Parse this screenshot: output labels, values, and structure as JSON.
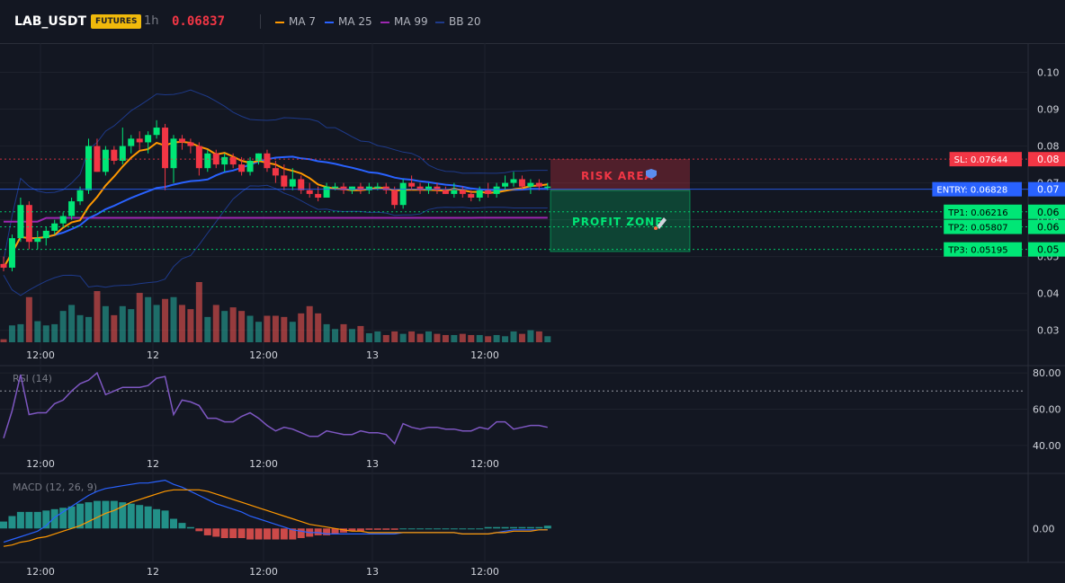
{
  "header": {
    "symbol": "LAB_USDT",
    "badge": "FUTURES",
    "timeframe": "1h",
    "price": "0.06837",
    "legend": [
      {
        "label": "MA 7",
        "color": "#ff9800"
      },
      {
        "label": "MA 25",
        "color": "#2962ff"
      },
      {
        "label": "MA 99",
        "color": "#9c27b0"
      },
      {
        "label": "BB 20",
        "color": "#1e3a8a"
      }
    ]
  },
  "colors": {
    "up": "#00e676",
    "down": "#f23645",
    "vol_up": "#26a69a",
    "vol_down": "#ef5350",
    "grid": "#1e222d",
    "axis_text": "#d1d4dc"
  },
  "chart_data": [
    {
      "type": "candlestick",
      "panel": "price",
      "ylim": [
        0.027,
        0.105
      ],
      "y_ticks": [
        "0.10",
        "0.09",
        "0.08",
        "0.07",
        "0.06",
        "0.05",
        "0.04",
        "0.03"
      ],
      "x_ticks": [
        "12:00",
        "12",
        "12:00",
        "13",
        "12:00"
      ],
      "candles": [
        [
          0.048,
          0.05,
          0.046,
          0.047
        ],
        [
          0.047,
          0.056,
          0.046,
          0.055
        ],
        [
          0.055,
          0.066,
          0.054,
          0.064
        ],
        [
          0.064,
          0.065,
          0.052,
          0.054
        ],
        [
          0.054,
          0.057,
          0.052,
          0.055
        ],
        [
          0.055,
          0.058,
          0.053,
          0.057
        ],
        [
          0.057,
          0.06,
          0.056,
          0.059
        ],
        [
          0.059,
          0.062,
          0.058,
          0.061
        ],
        [
          0.061,
          0.066,
          0.06,
          0.065
        ],
        [
          0.065,
          0.069,
          0.064,
          0.068
        ],
        [
          0.068,
          0.082,
          0.067,
          0.08
        ],
        [
          0.08,
          0.082,
          0.073,
          0.073
        ],
        [
          0.073,
          0.08,
          0.072,
          0.079
        ],
        [
          0.079,
          0.08,
          0.075,
          0.076
        ],
        [
          0.076,
          0.085,
          0.075,
          0.08
        ],
        [
          0.08,
          0.083,
          0.078,
          0.082
        ],
        [
          0.082,
          0.084,
          0.079,
          0.081
        ],
        [
          0.081,
          0.084,
          0.078,
          0.083
        ],
        [
          0.083,
          0.087,
          0.082,
          0.085
        ],
        [
          0.085,
          0.086,
          0.068,
          0.074
        ],
        [
          0.074,
          0.083,
          0.07,
          0.082
        ],
        [
          0.082,
          0.083,
          0.079,
          0.081
        ],
        [
          0.081,
          0.082,
          0.078,
          0.08
        ],
        [
          0.08,
          0.081,
          0.072,
          0.074
        ],
        [
          0.074,
          0.079,
          0.073,
          0.078
        ],
        [
          0.078,
          0.079,
          0.074,
          0.075
        ],
        [
          0.075,
          0.078,
          0.073,
          0.077
        ],
        [
          0.077,
          0.078,
          0.074,
          0.075
        ],
        [
          0.075,
          0.077,
          0.072,
          0.073
        ],
        [
          0.073,
          0.077,
          0.072,
          0.076
        ],
        [
          0.076,
          0.078,
          0.075,
          0.078
        ],
        [
          0.078,
          0.079,
          0.073,
          0.074
        ],
        [
          0.074,
          0.076,
          0.07,
          0.072
        ],
        [
          0.072,
          0.075,
          0.068,
          0.069
        ],
        [
          0.069,
          0.074,
          0.068,
          0.071
        ],
        [
          0.071,
          0.072,
          0.067,
          0.068
        ],
        [
          0.068,
          0.07,
          0.066,
          0.067
        ],
        [
          0.067,
          0.069,
          0.065,
          0.066
        ],
        [
          0.066,
          0.07,
          0.066,
          0.069
        ],
        [
          0.069,
          0.07,
          0.068,
          0.069
        ],
        [
          0.069,
          0.07,
          0.067,
          0.068
        ],
        [
          0.068,
          0.069,
          0.067,
          0.069
        ],
        [
          0.069,
          0.07,
          0.067,
          0.068
        ],
        [
          0.068,
          0.07,
          0.067,
          0.069
        ],
        [
          0.069,
          0.07,
          0.068,
          0.069
        ],
        [
          0.069,
          0.07,
          0.067,
          0.068
        ],
        [
          0.068,
          0.069,
          0.063,
          0.064
        ],
        [
          0.064,
          0.071,
          0.063,
          0.07
        ],
        [
          0.07,
          0.072,
          0.068,
          0.069
        ],
        [
          0.069,
          0.07,
          0.067,
          0.068
        ],
        [
          0.068,
          0.07,
          0.067,
          0.069
        ],
        [
          0.069,
          0.07,
          0.067,
          0.068
        ],
        [
          0.068,
          0.069,
          0.067,
          0.067
        ],
        [
          0.067,
          0.07,
          0.066,
          0.068
        ],
        [
          0.068,
          0.069,
          0.066,
          0.067
        ],
        [
          0.067,
          0.068,
          0.065,
          0.066
        ],
        [
          0.066,
          0.069,
          0.065,
          0.068
        ],
        [
          0.068,
          0.07,
          0.066,
          0.067
        ],
        [
          0.067,
          0.07,
          0.066,
          0.069
        ],
        [
          0.069,
          0.072,
          0.068,
          0.07
        ],
        [
          0.07,
          0.073,
          0.069,
          0.071
        ],
        [
          0.071,
          0.072,
          0.068,
          0.069
        ],
        [
          0.069,
          0.071,
          0.067,
          0.07
        ],
        [
          0.07,
          0.071,
          0.068,
          0.069
        ],
        [
          0.069,
          0.07,
          0.068,
          0.069
        ]
      ],
      "volume": [
        0.05,
        0.28,
        0.3,
        0.75,
        0.35,
        0.28,
        0.3,
        0.52,
        0.62,
        0.45,
        0.42,
        0.85,
        0.6,
        0.45,
        0.6,
        0.55,
        0.82,
        0.75,
        0.62,
        0.72,
        0.75,
        0.62,
        0.55,
        1.0,
        0.42,
        0.62,
        0.52,
        0.58,
        0.52,
        0.44,
        0.34,
        0.44,
        0.44,
        0.42,
        0.34,
        0.48,
        0.6,
        0.48,
        0.3,
        0.22,
        0.3,
        0.22,
        0.27,
        0.15,
        0.18,
        0.12,
        0.18,
        0.14,
        0.18,
        0.14,
        0.18,
        0.14,
        0.12,
        0.12,
        0.14,
        0.12,
        0.12,
        0.1,
        0.12,
        0.1,
        0.18,
        0.14,
        0.2,
        0.18,
        0.1
      ]
    },
    {
      "type": "line",
      "panel": "rsi",
      "title": "RSI (14)",
      "ylim": [
        33,
        84
      ],
      "y_ticks": [
        "80.00",
        "60.00",
        "40.00"
      ],
      "x_ticks": [
        "12:00",
        "12",
        "12:00",
        "13",
        "12:00"
      ],
      "values": [
        44,
        59,
        79,
        57,
        58,
        58,
        63,
        65,
        70,
        74,
        76,
        80,
        68,
        70,
        72,
        72,
        72,
        73,
        77,
        78,
        57,
        65,
        64,
        62,
        55,
        55,
        53,
        53,
        56,
        58,
        55,
        51,
        48,
        50,
        49,
        47,
        45,
        45,
        48,
        47,
        46,
        46,
        48,
        47,
        47,
        46,
        41,
        52,
        50,
        49,
        50,
        50,
        49,
        49,
        48,
        48,
        50,
        49,
        53,
        53,
        49,
        50,
        51,
        51,
        50
      ],
      "overbought": 70
    },
    {
      "type": "line",
      "panel": "macd",
      "title": "MACD (12, 26, 9)",
      "ylim": [
        -0.0022,
        0.0038
      ],
      "y_ticks": [
        "0.00"
      ],
      "x_ticks": [
        "12:00",
        "12",
        "12:00",
        "13",
        "12:00"
      ],
      "series": [
        {
          "values": [
            -0.001,
            -0.0008,
            -0.0006,
            -0.0004,
            -0.0002,
            0.0002,
            0.0008,
            0.0012,
            0.0016,
            0.002,
            0.0024,
            0.0027,
            0.0029,
            0.003,
            0.0031,
            0.0032,
            0.0033,
            0.0033,
            0.0034,
            0.0035,
            0.0032,
            0.003,
            0.0027,
            0.0024,
            0.0021,
            0.0018,
            0.0016,
            0.0014,
            0.0012,
            0.0009,
            0.0007,
            0.0005,
            0.0003,
            0.0001,
            -0.0001,
            -0.0002,
            -0.0003,
            -0.0003,
            -0.0004,
            -0.0004,
            -0.0004,
            -0.0004,
            -0.0004,
            -0.0004,
            -0.0004,
            -0.0004,
            -0.0004,
            -0.0003,
            -0.0003,
            -0.0003,
            -0.0003,
            -0.0003,
            -0.0003,
            -0.0003,
            -0.0004,
            -0.0004,
            -0.0004,
            -0.0004,
            -0.0003,
            -0.0002,
            -0.0001,
            -0.0001,
            -0.0001,
            -0.0001,
            -0.0001
          ],
          "color": "#2962ff"
        },
        {
          "values": [
            -0.0013,
            -0.0012,
            -0.001,
            -0.0009,
            -0.0007,
            -0.0006,
            -0.0004,
            -0.0002,
            0.0,
            0.0002,
            0.0005,
            0.0008,
            0.0011,
            0.0013,
            0.0016,
            0.0019,
            0.0021,
            0.0023,
            0.0025,
            0.0027,
            0.0028,
            0.0028,
            0.0028,
            0.0028,
            0.0027,
            0.0025,
            0.0023,
            0.0021,
            0.0019,
            0.0017,
            0.0015,
            0.0013,
            0.0011,
            0.0009,
            0.0007,
            0.0005,
            0.0003,
            0.0002,
            0.0001,
            0.0,
            -0.0001,
            -0.0002,
            -0.0002,
            -0.0003,
            -0.0003,
            -0.0003,
            -0.0003,
            -0.0003,
            -0.0003,
            -0.0003,
            -0.0003,
            -0.0003,
            -0.0003,
            -0.0003,
            -0.0004,
            -0.0004,
            -0.0004,
            -0.0004,
            -0.0003,
            -0.0003,
            -0.0002,
            -0.0002,
            -0.0002,
            -0.0001,
            -0.0001
          ],
          "color": "#ff9800"
        }
      ],
      "histogram": [
        0.0005,
        0.0009,
        0.0012,
        0.0012,
        0.0012,
        0.0013,
        0.0014,
        0.0015,
        0.0016,
        0.0018,
        0.0019,
        0.002,
        0.002,
        0.002,
        0.0019,
        0.0018,
        0.0017,
        0.0016,
        0.0014,
        0.0013,
        0.0007,
        0.0004,
        0.0001,
        -0.0002,
        -0.0005,
        -0.0006,
        -0.0007,
        -0.0007,
        -0.0007,
        -0.0008,
        -0.0008,
        -0.0008,
        -0.0008,
        -0.0008,
        -0.0008,
        -0.0007,
        -0.0006,
        -0.0005,
        -0.0005,
        -0.0004,
        -0.0003,
        -0.0002,
        -0.0002,
        -0.0001,
        -0.0001,
        -0.0001,
        -0.0001,
        0.0,
        0.0,
        0.0,
        0.0,
        0.0,
        0.0,
        0.0,
        0.0,
        0.0,
        0.0,
        0.0001,
        0.0001,
        0.0001,
        0.0001,
        0.0001,
        0.0001,
        0.0001,
        0.0002
      ]
    }
  ],
  "trade": {
    "sl": {
      "label": "SL: 0.07644",
      "axis": "0.08",
      "value": 0.07644,
      "color": "#f23645"
    },
    "entry": {
      "label": "ENTRY: 0.06828",
      "axis": "0.07",
      "value": 0.06828,
      "color": "#2962ff"
    },
    "tp": [
      {
        "label": "TP1: 0.06216",
        "axis": "0.06",
        "value": 0.06216
      },
      {
        "label": "TP2: 0.05807",
        "axis": "0.06",
        "value": 0.05807
      },
      {
        "label": "TP3: 0.05195",
        "axis": "0.05",
        "value": 0.05195
      }
    ],
    "tp_color": "#00e676",
    "risk_zone": "RISK AREA",
    "profit_zone": "PROFIT ZONE",
    "risk_icon": "shield-icon",
    "profit_icon": "rocket-icon"
  }
}
